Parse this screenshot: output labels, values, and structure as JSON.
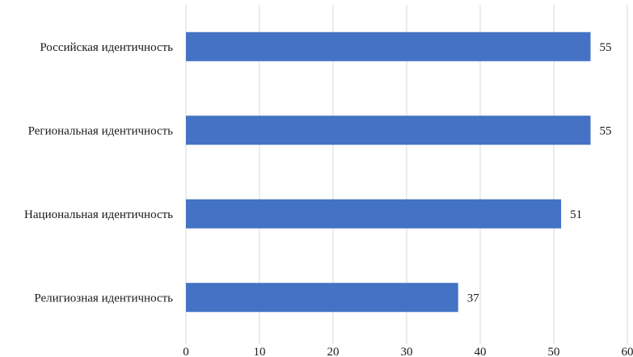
{
  "chart_data": {
    "type": "bar",
    "orientation": "horizontal",
    "title": "",
    "xlabel": "",
    "ylabel": "",
    "categories": [
      "Российская идентичность",
      "Региональная идентичность",
      "Национальная идентичность",
      "Религиозная идентичность"
    ],
    "values": [
      55,
      55,
      51,
      37
    ],
    "data_labels": [
      "55",
      "55",
      "51",
      "37"
    ],
    "xlim": [
      0,
      60
    ],
    "xticks": [
      0,
      10,
      20,
      30,
      40,
      50,
      60
    ],
    "xtick_labels": [
      "0",
      "10",
      "20",
      "30",
      "40",
      "50",
      "60"
    ],
    "grid": "vertical",
    "legend": "none",
    "bar_color": "#4472c4",
    "grid_color": "#d9d9d9"
  }
}
